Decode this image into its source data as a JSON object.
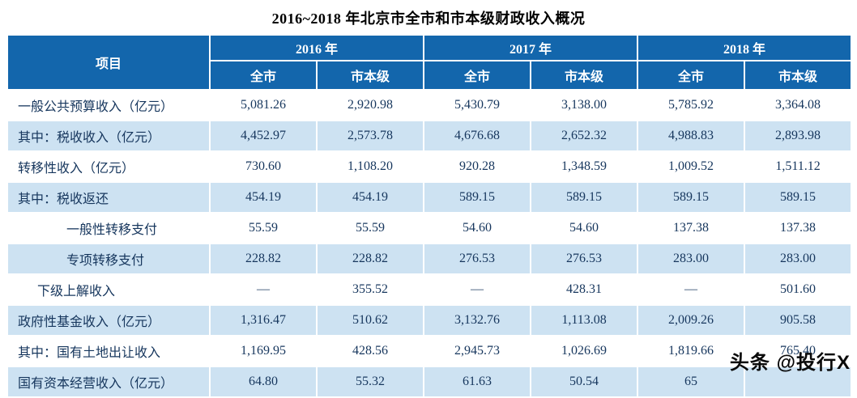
{
  "title": "2016~2018 年北京市全市和市本级财政收入概况",
  "colors": {
    "header_bg": "#1366AC",
    "header_text": "#FFFFFF",
    "band_bg": "#CDE2F2",
    "body_text": "#16365D"
  },
  "table": {
    "item_header": "项目",
    "year_groups": [
      {
        "year": "2016 年",
        "sub": [
          "全市",
          "市本级"
        ]
      },
      {
        "year": "2017 年",
        "sub": [
          "全市",
          "市本级"
        ]
      },
      {
        "year": "2018 年",
        "sub": [
          "全市",
          "市本级"
        ]
      }
    ],
    "rows": [
      {
        "label": "一般公共预算收入（亿元）",
        "indent": 0,
        "values": [
          "5,081.26",
          "2,920.98",
          "5,430.79",
          "3,138.00",
          "5,785.92",
          "3,364.08"
        ]
      },
      {
        "label": "其中：税收收入（亿元）",
        "indent": 0,
        "values": [
          "4,452.97",
          "2,573.78",
          "4,676.68",
          "2,652.32",
          "4,988.83",
          "2,893.98"
        ]
      },
      {
        "label": "转移性收入（亿元）",
        "indent": 0,
        "values": [
          "730.60",
          "1,108.20",
          "920.28",
          "1,348.59",
          "1,009.52",
          "1,511.12"
        ]
      },
      {
        "label": "其中：税收返还",
        "indent": 0,
        "values": [
          "454.19",
          "454.19",
          "589.15",
          "589.15",
          "589.15",
          "589.15"
        ]
      },
      {
        "label": "一般性转移支付",
        "indent": 2,
        "values": [
          "55.59",
          "55.59",
          "54.60",
          "54.60",
          "137.38",
          "137.38"
        ]
      },
      {
        "label": "专项转移支付",
        "indent": 2,
        "values": [
          "228.82",
          "228.82",
          "276.53",
          "276.53",
          "283.00",
          "283.00"
        ]
      },
      {
        "label": "下级上解收入",
        "indent": 1,
        "values": [
          "—",
          "355.52",
          "—",
          "428.31",
          "—",
          "501.60"
        ]
      },
      {
        "label": "政府性基金收入（亿元）",
        "indent": 0,
        "values": [
          "1,316.47",
          "510.62",
          "3,132.76",
          "1,113.08",
          "2,009.26",
          "905.58"
        ]
      },
      {
        "label": "其中：国有土地出让收入",
        "indent": 0,
        "values": [
          "1,169.95",
          "428.56",
          "2,945.73",
          "1,026.69",
          "1,819.66",
          "765.40"
        ]
      },
      {
        "label": "国有资本经营收入（亿元）",
        "indent": 0,
        "values": [
          "64.80",
          "55.32",
          "61.63",
          "50.54",
          "65",
          ""
        ]
      }
    ]
  },
  "watermark": "头条 @投行X"
}
